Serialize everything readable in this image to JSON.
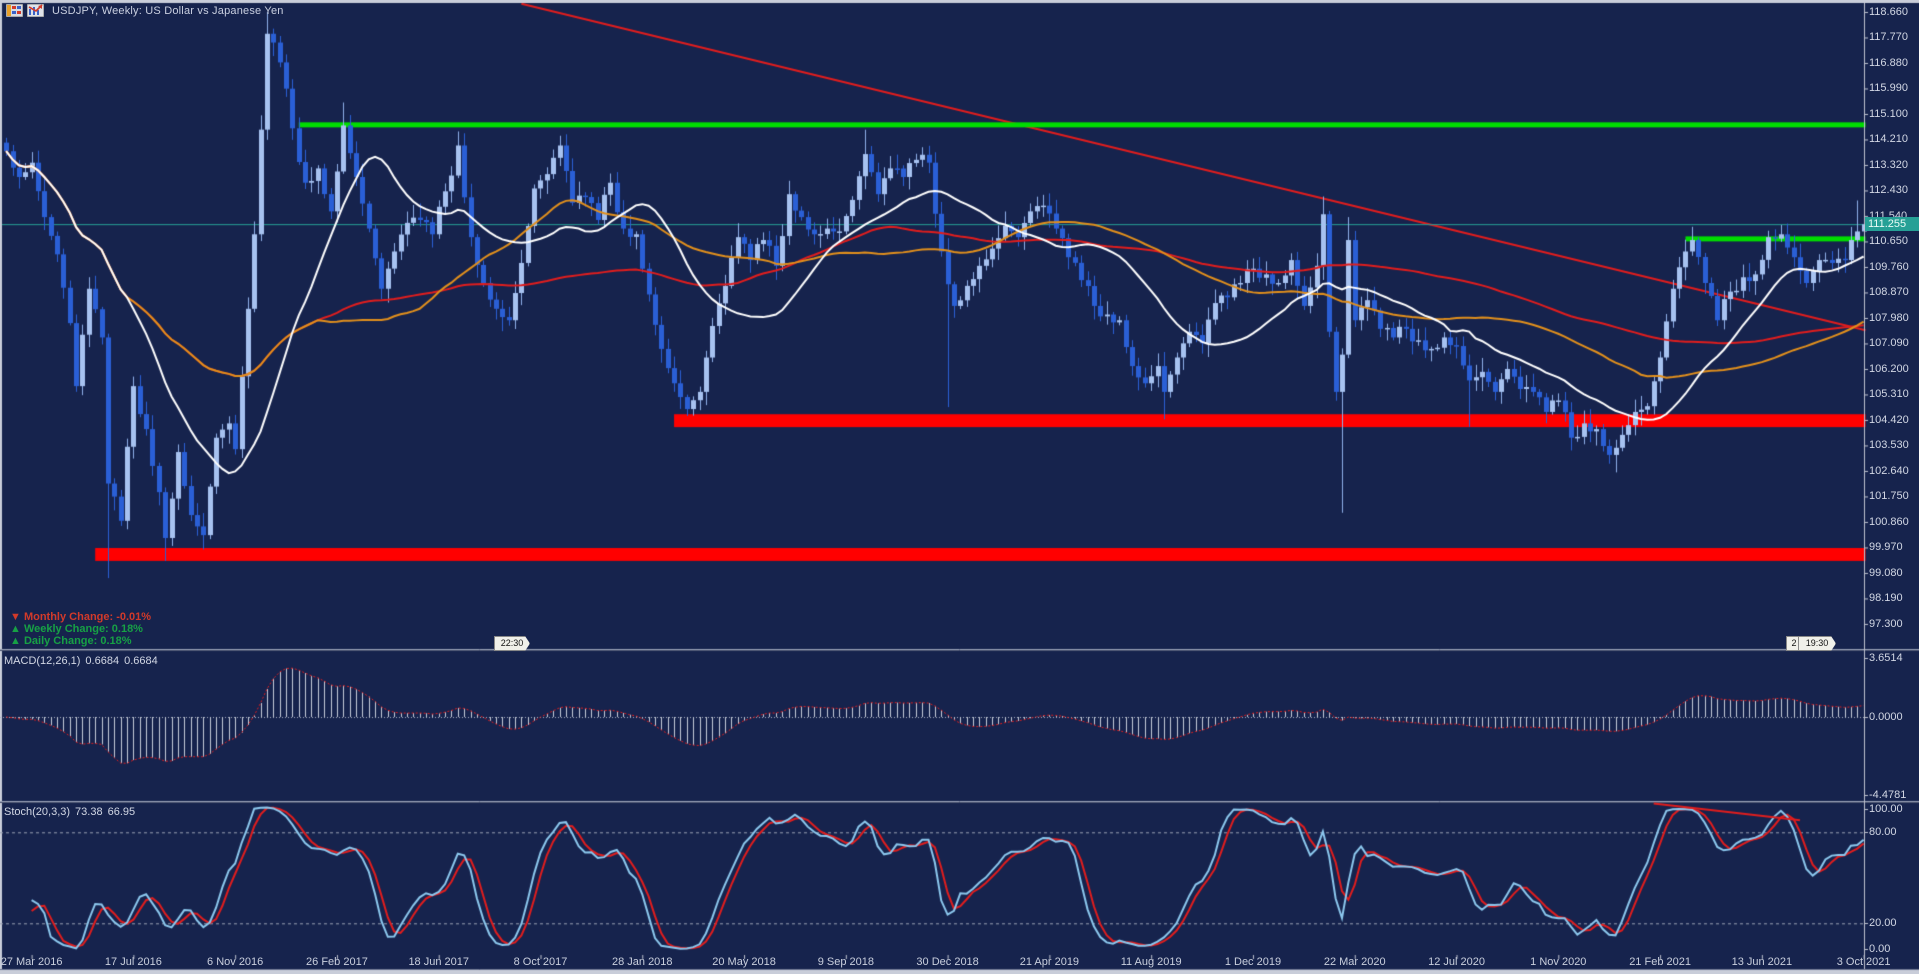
{
  "window": {
    "title": "USDJPY, Weekly:  US Dollar vs Japanese Yen",
    "icons": [
      "chart-properties-icon",
      "indicator-chart-icon"
    ]
  },
  "annotations": {
    "monthly": {
      "arrow": "▼",
      "text": "Monthly Change: -0.01%",
      "color": "#d23a2a"
    },
    "weekly": {
      "arrow": "▲",
      "text": "Weekly Change: 0.18%",
      "color": "#17a045"
    },
    "daily": {
      "arrow": "▲",
      "text": "Daily Change: 0.18%",
      "color": "#17a045"
    }
  },
  "indicators": {
    "macd": {
      "name": "MACD(12,26,1)",
      "value1": "0.6684",
      "value2": "0.6684",
      "axis": [
        "3.6514",
        "0.0000",
        "-4.4781"
      ]
    },
    "stoch": {
      "name": "Stoch(20,3,3)",
      "value1": "73.38",
      "value2": "66.95",
      "axis": [
        "100.00",
        "80.00",
        "20.00",
        "0.00"
      ]
    }
  },
  "price_axis": {
    "current": "111.255",
    "labels": [
      "118.660",
      "117.770",
      "116.880",
      "115.990",
      "115.100",
      "114.210",
      "113.320",
      "112.430",
      "111.540",
      "110.650",
      "109.760",
      "108.870",
      "107.980",
      "107.090",
      "106.200",
      "105.310",
      "104.420",
      "103.530",
      "102.640",
      "101.750",
      "100.860",
      "99.970",
      "99.080",
      "98.190",
      "97.300"
    ]
  },
  "date_axis": {
    "labels": [
      "27 Mar 2016",
      "17 Jul 2016",
      "6 Nov 2016",
      "26 Feb 2017",
      "18 Jun 2017",
      "8 Oct 2017",
      "28 Jan 2018",
      "20 May 2018",
      "9 Sep 2018",
      "30 Dec 2018",
      "21 Apr 2019",
      "11 Aug 2019",
      "1 Dec 2019",
      "22 Mar 2020",
      "12 Jul 2020",
      "1 Nov 2020",
      "21 Feb 2021",
      "13 Jun 2021",
      "3 Oct 2021"
    ]
  },
  "time_tags": {
    "left": "22:30",
    "right": "19:30",
    "right_partial": "2"
  },
  "chart_data": {
    "type": "candlestick",
    "symbol": "USDJPY",
    "timeframe": "Weekly",
    "title": "US Dollar vs Japanese Yen",
    "price_range_visible": [
      97.0,
      119.08
    ],
    "grid": false,
    "colors": {
      "background": "#16234d",
      "bull": "#a7c2f0",
      "bear": "#2a5fd6",
      "ma_fast": "#ffffff",
      "ma_mid": "#e2901c",
      "ma_slow": "#e11d1d",
      "object_green": "#00dd00",
      "object_red": "#ff0000",
      "current_price": "#26a096",
      "macd_histogram": "#c7cdda",
      "macd_signal": "#e11d1d",
      "stoch_main": "#8cc8ee",
      "stoch_signal": "#e11d1d",
      "axis_text": "#d2d7e4"
    },
    "moving_averages": [
      {
        "name": "fast",
        "period": 20,
        "method": "sma",
        "color": "#ffffff"
      },
      {
        "name": "mid",
        "period": 50,
        "method": "sma",
        "color": "#e2901c"
      },
      {
        "name": "slow",
        "period": 100,
        "method": "sma",
        "color": "#e11d1d"
      }
    ],
    "anchors": [
      [
        0,
        113.8
      ],
      [
        2,
        112.9
      ],
      [
        4,
        113.4
      ],
      [
        6,
        111.5
      ],
      [
        8,
        110.2
      ],
      [
        10,
        107.8
      ],
      [
        11,
        105.6
      ],
      [
        13,
        109.0
      ],
      [
        15,
        107.3
      ],
      [
        16,
        102.2
      ],
      [
        18,
        100.9
      ],
      [
        20,
        105.6
      ],
      [
        22,
        104.1
      ],
      [
        24,
        101.9
      ],
      [
        25,
        100.3
      ],
      [
        27,
        103.3
      ],
      [
        29,
        101.1
      ],
      [
        31,
        100.4
      ],
      [
        33,
        103.8
      ],
      [
        35,
        104.3
      ],
      [
        36,
        103.4
      ],
      [
        38,
        108.3
      ],
      [
        39,
        110.9
      ],
      [
        41,
        117.9
      ],
      [
        43,
        116.9
      ],
      [
        45,
        114.6
      ],
      [
        47,
        112.7
      ],
      [
        49,
        113.2
      ],
      [
        51,
        111.7
      ],
      [
        53,
        114.7
      ],
      [
        55,
        112.9
      ],
      [
        57,
        111.1
      ],
      [
        59,
        109.0
      ],
      [
        61,
        110.3
      ],
      [
        63,
        111.3
      ],
      [
        65,
        111.4
      ],
      [
        67,
        110.9
      ],
      [
        69,
        112.4
      ],
      [
        71,
        114.0
      ],
      [
        73,
        110.8
      ],
      [
        75,
        109.2
      ],
      [
        77,
        108.3
      ],
      [
        79,
        107.9
      ],
      [
        81,
        109.9
      ],
      [
        83,
        112.5
      ],
      [
        85,
        113.0
      ],
      [
        87,
        114.0
      ],
      [
        89,
        112.0
      ],
      [
        91,
        112.2
      ],
      [
        93,
        111.4
      ],
      [
        95,
        112.7
      ],
      [
        97,
        111.1
      ],
      [
        99,
        110.9
      ],
      [
        101,
        108.8
      ],
      [
        103,
        106.9
      ],
      [
        105,
        105.7
      ],
      [
        107,
        104.8
      ],
      [
        109,
        105.4
      ],
      [
        111,
        107.7
      ],
      [
        113,
        109.1
      ],
      [
        115,
        110.8
      ],
      [
        117,
        110.0
      ],
      [
        119,
        110.7
      ],
      [
        121,
        109.8
      ],
      [
        123,
        112.3
      ],
      [
        125,
        111.5
      ],
      [
        127,
        110.9
      ],
      [
        129,
        111.1
      ],
      [
        131,
        111.0
      ],
      [
        133,
        112.1
      ],
      [
        135,
        113.7
      ],
      [
        137,
        112.3
      ],
      [
        139,
        113.2
      ],
      [
        141,
        112.9
      ],
      [
        143,
        113.5
      ],
      [
        145,
        113.4
      ],
      [
        147,
        110.3
      ],
      [
        149,
        108.4
      ],
      [
        151,
        109.1
      ],
      [
        153,
        109.8
      ],
      [
        155,
        110.4
      ],
      [
        157,
        111.2
      ],
      [
        159,
        110.8
      ],
      [
        161,
        111.7
      ],
      [
        163,
        111.9
      ],
      [
        165,
        111.1
      ],
      [
        167,
        110.1
      ],
      [
        169,
        109.3
      ],
      [
        171,
        108.4
      ],
      [
        173,
        108.1
      ],
      [
        175,
        107.9
      ],
      [
        177,
        106.3
      ],
      [
        179,
        105.7
      ],
      [
        181,
        106.3
      ],
      [
        182,
        105.4
      ],
      [
        184,
        106.6
      ],
      [
        186,
        107.5
      ],
      [
        188,
        107.1
      ],
      [
        190,
        108.5
      ],
      [
        192,
        108.7
      ],
      [
        194,
        109.2
      ],
      [
        196,
        109.7
      ],
      [
        198,
        109.5
      ],
      [
        200,
        109.2
      ],
      [
        202,
        110.0
      ],
      [
        204,
        108.4
      ],
      [
        206,
        109.8
      ],
      [
        207,
        111.6
      ],
      [
        208,
        107.5
      ],
      [
        209,
        105.4
      ],
      [
        210,
        106.7
      ],
      [
        211,
        110.7
      ],
      [
        212,
        107.9
      ],
      [
        214,
        108.6
      ],
      [
        216,
        107.6
      ],
      [
        218,
        107.3
      ],
      [
        220,
        107.6
      ],
      [
        222,
        107.2
      ],
      [
        224,
        106.9
      ],
      [
        226,
        107.3
      ],
      [
        228,
        107.0
      ],
      [
        230,
        105.8
      ],
      [
        232,
        106.1
      ],
      [
        234,
        105.4
      ],
      [
        236,
        106.2
      ],
      [
        238,
        105.5
      ],
      [
        240,
        105.4
      ],
      [
        242,
        104.7
      ],
      [
        244,
        105.1
      ],
      [
        246,
        103.8
      ],
      [
        248,
        104.3
      ],
      [
        250,
        104.1
      ],
      [
        252,
        103.2
      ],
      [
        254,
        103.9
      ],
      [
        256,
        104.7
      ],
      [
        258,
        104.9
      ],
      [
        260,
        106.6
      ],
      [
        262,
        109.0
      ],
      [
        264,
        110.3
      ],
      [
        265,
        110.7
      ],
      [
        267,
        109.2
      ],
      [
        269,
        107.9
      ],
      [
        271,
        108.9
      ],
      [
        273,
        109.4
      ],
      [
        275,
        109.5
      ],
      [
        277,
        110.8
      ],
      [
        279,
        110.9
      ],
      [
        281,
        110.1
      ],
      [
        283,
        109.2
      ],
      [
        285,
        110.0
      ],
      [
        287,
        109.9
      ],
      [
        289,
        110.0
      ],
      [
        290,
        110.7
      ],
      [
        291,
        111.0
      ],
      [
        292,
        111.25
      ]
    ],
    "wick_overrides": {
      "16": {
        "low": 98.9
      },
      "25": {
        "low": 99.5
      },
      "31": {
        "low": 99.9
      },
      "41": {
        "high": 118.66
      },
      "53": {
        "high": 115.5
      },
      "71": {
        "high": 114.49
      },
      "107": {
        "low": 104.56
      },
      "135": {
        "high": 114.55
      },
      "148": {
        "low": 104.87
      },
      "182": {
        "low": 104.44
      },
      "207": {
        "high": 112.22
      },
      "210": {
        "low": 101.18
      },
      "211": {
        "high": 111.5
      },
      "230": {
        "low": 104.18
      },
      "253": {
        "low": 102.59
      },
      "291": {
        "high": 112.08
      }
    },
    "objects": [
      {
        "type": "trendline",
        "panel": "main",
        "color": "#e11d1d",
        "from": {
          "week": 81,
          "price": 118.95
        },
        "to": {
          "week": 292.3,
          "price": 107.55
        }
      },
      {
        "type": "hline_segment",
        "panel": "main",
        "color": "#00dd00",
        "price": 114.72,
        "from_week": 46,
        "to_week": 292.3,
        "thickness": 5
      },
      {
        "type": "hline_segment",
        "panel": "main",
        "color": "#00dd00",
        "price": 110.74,
        "from_week": 264,
        "to_week": 292.3,
        "thickness": 5
      },
      {
        "type": "band",
        "panel": "main",
        "color": "#ff0000",
        "price_top": 104.62,
        "price_bottom": 104.17,
        "from_week": 105,
        "to_week": 292.3
      },
      {
        "type": "band",
        "panel": "main",
        "color": "#ff0000",
        "price_top": 99.95,
        "price_bottom": 99.5,
        "from_week": 14,
        "to_week": 292.3
      },
      {
        "type": "hline",
        "panel": "main",
        "color": "#26a096",
        "price": 111.255,
        "style": "current-price"
      },
      {
        "type": "trendline",
        "panel": "stoch",
        "color": "#e11d1d",
        "from": {
          "week": 259,
          "value": 99
        },
        "to": {
          "week": 282,
          "value": 88
        }
      }
    ],
    "macd_panel": {
      "label": "MACD(12,26,1)",
      "max": 3.6514,
      "min": -4.4781,
      "zero": 0.0,
      "last": 0.6684
    },
    "stoch_panel": {
      "label": "Stoch(20,3,3)",
      "levels": [
        80,
        20
      ],
      "last_main": 73.38,
      "last_signal": 66.95
    }
  }
}
